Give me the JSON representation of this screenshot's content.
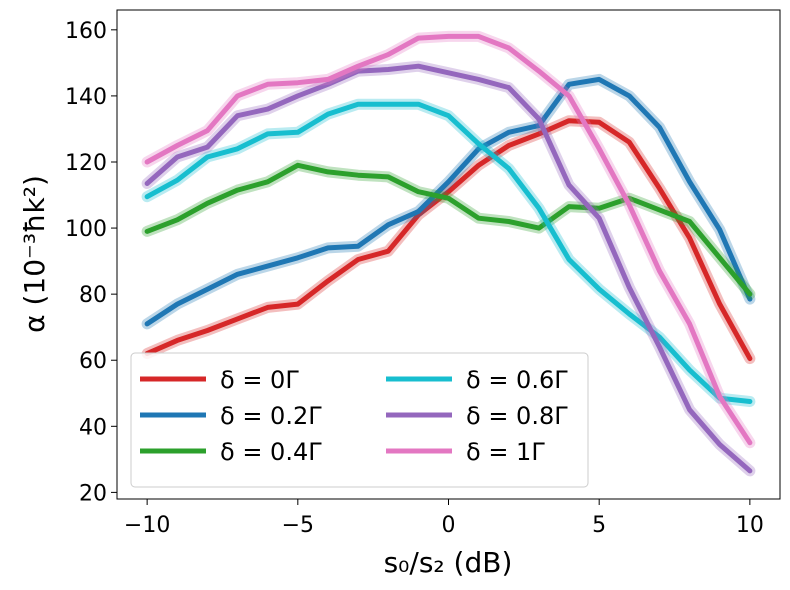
{
  "chart_data": {
    "type": "line",
    "title": "",
    "xlabel": "s₀/s₂ (dB)",
    "ylabel": "α (10⁻³ħk²)",
    "xlim": [
      -11,
      11
    ],
    "ylim": [
      18,
      166
    ],
    "xticks": [
      -10,
      -5,
      0,
      5,
      10
    ],
    "yticks": [
      20,
      40,
      60,
      80,
      100,
      120,
      140,
      160
    ],
    "xtick_labels": [
      "−10",
      "−5",
      "0",
      "5",
      "10"
    ],
    "ytick_labels": [
      "20",
      "40",
      "60",
      "80",
      "100",
      "120",
      "140",
      "160"
    ],
    "grid": false,
    "legend_position": "lower-left",
    "x": [
      -10,
      -9,
      -8,
      -7,
      -6,
      -5,
      -4,
      -3,
      -2,
      -1,
      0,
      1,
      2,
      3,
      4,
      5,
      6,
      7,
      8,
      9,
      10
    ],
    "series": [
      {
        "name": "δ = 0Γ",
        "color": "#d62728",
        "values": [
          62,
          66,
          69,
          72.5,
          76,
          77,
          84,
          90.5,
          93,
          104,
          111,
          119,
          125,
          128.5,
          132.5,
          132,
          126,
          112,
          97,
          77,
          60.5
        ]
      },
      {
        "name": "δ = 0.2Γ",
        "color": "#1f77b4",
        "values": [
          71,
          77,
          81.5,
          86,
          88.5,
          91,
          94,
          94.5,
          101,
          105,
          114,
          124,
          129,
          131,
          143.5,
          145,
          140,
          130.5,
          114,
          99.5,
          78.5
        ]
      },
      {
        "name": "δ = 0.4Γ",
        "color": "#2ca02c",
        "values": [
          99,
          102.5,
          107.5,
          111.5,
          114,
          119,
          117,
          116,
          115.5,
          111,
          109,
          103,
          102,
          100,
          106.5,
          106,
          109,
          105.5,
          102,
          91,
          80
        ]
      },
      {
        "name": "δ = 0.6Γ",
        "color": "#17becf",
        "values": [
          109.5,
          114.5,
          121.5,
          124,
          128.5,
          129,
          134.5,
          137.5,
          137.5,
          137.5,
          134,
          125.5,
          118,
          106,
          90.5,
          81.5,
          74,
          67,
          57,
          48.5,
          47.5
        ]
      },
      {
        "name": "δ = 0.8Γ",
        "color": "#9467bd",
        "values": [
          113.5,
          121.5,
          124.5,
          134,
          136,
          140,
          143.5,
          147.5,
          148,
          149,
          147,
          145,
          142.5,
          133,
          113,
          103,
          82,
          64,
          45,
          34.5,
          26.5
        ]
      },
      {
        "name": "δ = 1Γ",
        "color": "#e377c2",
        "values": [
          120,
          125,
          129.5,
          140,
          143.5,
          144,
          145,
          149,
          152.5,
          157.5,
          158,
          158,
          154.5,
          147.5,
          140,
          124,
          107,
          87,
          71,
          49,
          35
        ]
      }
    ]
  }
}
